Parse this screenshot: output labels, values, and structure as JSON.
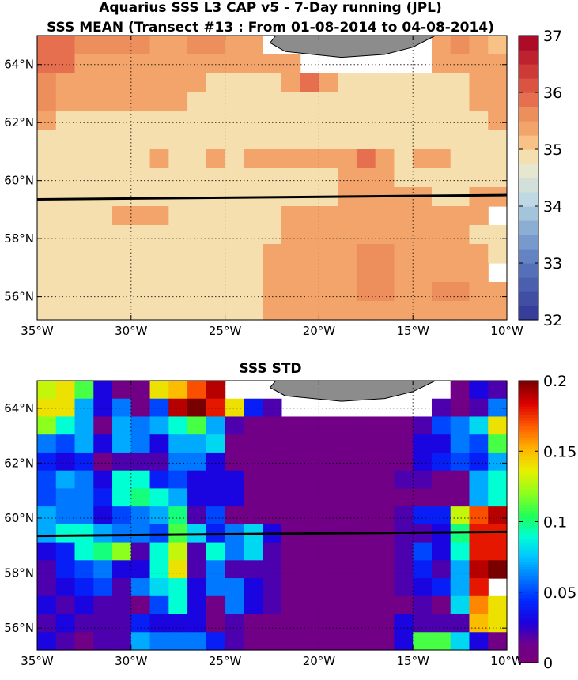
{
  "chart_data": [
    {
      "type": "heatmap",
      "title": "Aquarius SSS L3 CAP v5 - 7-Day running (JPL)",
      "subtitle": "SSS MEAN (Transect #13 : From 01-08-2014 to 04-08-2014)",
      "x_ticks": [
        "35°W",
        "30°W",
        "25°W",
        "20°W",
        "15°W",
        "10°W"
      ],
      "y_ticks": [
        "64°N",
        "62°N",
        "60°N",
        "58°N",
        "56°N"
      ],
      "colorbar": {
        "min": 32,
        "max": 37,
        "ticks": [
          "32",
          "33",
          "34",
          "35",
          "36",
          "37"
        ]
      },
      "xlim": [
        -35,
        -10
      ],
      "ylim": [
        55.2,
        65
      ],
      "transect": {
        "lon": [
          -35,
          -10
        ],
        "lat": [
          59.35,
          59.5
        ]
      },
      "cell_deg": 1,
      "rows_top_to_bottom": [
        [
          36.0,
          36.0,
          35.6,
          35.6,
          35.6,
          35.6,
          35.3,
          35.3,
          35.6,
          35.6,
          35.3,
          35.3,
          -1,
          -1,
          -1,
          -1,
          -1,
          -1,
          -1,
          -1,
          -1,
          35.3,
          35.6,
          35.3,
          35.1
        ],
        [
          36.0,
          36.0,
          35.3,
          35.3,
          35.3,
          35.3,
          35.3,
          35.3,
          35.3,
          35.3,
          35.3,
          35.3,
          35.3,
          35.3,
          -2,
          -2,
          -2,
          -2,
          -2,
          -2,
          -2,
          35.3,
          35.3,
          35.3,
          35.3
        ],
        [
          35.6,
          35.3,
          35.3,
          35.3,
          35.3,
          35.3,
          35.3,
          35.3,
          35.3,
          35.0,
          35.0,
          35.0,
          35.0,
          35.3,
          35.8,
          35.3,
          35.0,
          35.0,
          35.0,
          35.0,
          35.0,
          35.0,
          35.0,
          35.3,
          35.3
        ],
        [
          35.6,
          35.3,
          35.3,
          35.3,
          35.3,
          35.3,
          35.3,
          35.3,
          35.0,
          35.0,
          35.0,
          35.0,
          35.0,
          35.0,
          35.0,
          35.0,
          35.0,
          35.0,
          35.0,
          35.0,
          35.0,
          35.0,
          35.0,
          35.3,
          35.3
        ],
        [
          35.3,
          35.0,
          35.0,
          35.0,
          35.0,
          35.0,
          35.0,
          35.0,
          35.0,
          35.0,
          35.0,
          35.0,
          35.0,
          35.0,
          35.0,
          35.0,
          35.0,
          35.0,
          35.0,
          35.0,
          35.0,
          35.0,
          35.0,
          35.0,
          35.3
        ],
        [
          35.0,
          35.0,
          35.0,
          35.0,
          35.0,
          35.0,
          35.0,
          35.0,
          35.0,
          35.0,
          35.0,
          35.0,
          35.0,
          35.0,
          35.0,
          35.0,
          35.0,
          35.0,
          35.0,
          34.9,
          35.0,
          35.0,
          35.0,
          35.0,
          35.0
        ],
        [
          35.0,
          35.0,
          35.0,
          35.0,
          34.9,
          35.0,
          35.3,
          35.0,
          35.0,
          35.3,
          35.0,
          35.3,
          35.3,
          35.3,
          35.3,
          35.3,
          35.3,
          35.8,
          35.3,
          34.9,
          35.3,
          35.3,
          35.0,
          35.0,
          35.0
        ],
        [
          35.0,
          35.0,
          35.0,
          35.0,
          35.0,
          35.0,
          35.0,
          35.0,
          35.0,
          35.0,
          35.0,
          35.0,
          35.0,
          35.0,
          35.0,
          35.0,
          35.3,
          35.3,
          35.3,
          35.0,
          35.0,
          35.0,
          35.0,
          35.0,
          35.0
        ],
        [
          35.0,
          35.0,
          35.0,
          35.0,
          35.0,
          35.0,
          35.0,
          35.0,
          35.0,
          35.0,
          35.0,
          35.0,
          35.0,
          35.0,
          35.0,
          35.0,
          35.3,
          35.3,
          35.3,
          35.3,
          35.3,
          35.0,
          35.0,
          35.3,
          35.3
        ],
        [
          35.0,
          35.0,
          35.0,
          35.0,
          35.3,
          35.3,
          35.3,
          35.0,
          35.0,
          35.0,
          35.0,
          35.0,
          35.0,
          35.3,
          35.3,
          35.3,
          35.3,
          35.3,
          35.3,
          35.3,
          35.3,
          35.3,
          35.3,
          35.3,
          -1
        ],
        [
          35.0,
          35.0,
          35.0,
          35.0,
          34.9,
          34.9,
          35.0,
          35.0,
          35.0,
          35.0,
          35.0,
          35.0,
          35.0,
          35.3,
          35.3,
          35.3,
          35.3,
          35.3,
          35.3,
          35.3,
          35.3,
          35.3,
          35.3,
          35.0,
          35.0
        ],
        [
          35.0,
          35.0,
          35.0,
          35.0,
          35.0,
          35.0,
          35.0,
          35.0,
          35.0,
          35.0,
          35.0,
          35.0,
          35.3,
          35.3,
          35.3,
          35.3,
          35.3,
          35.6,
          35.6,
          35.3,
          35.3,
          35.3,
          35.3,
          35.3,
          35.0
        ],
        [
          35.0,
          35.0,
          35.0,
          35.0,
          35.0,
          35.0,
          35.0,
          35.0,
          35.0,
          35.0,
          35.0,
          35.0,
          35.3,
          35.3,
          35.3,
          35.3,
          35.3,
          35.6,
          35.6,
          35.3,
          35.3,
          35.3,
          35.3,
          35.3,
          -1
        ],
        [
          35.0,
          35.0,
          35.0,
          35.0,
          34.9,
          35.0,
          35.0,
          35.0,
          35.0,
          35.0,
          35.0,
          35.0,
          35.3,
          35.3,
          35.3,
          35.3,
          35.3,
          35.6,
          35.6,
          35.3,
          35.3,
          35.6,
          35.6,
          35.3,
          35.3
        ],
        [
          35.0,
          35.0,
          35.0,
          35.0,
          35.0,
          35.0,
          35.0,
          35.0,
          35.0,
          35.0,
          35.0,
          35.0,
          35.3,
          35.3,
          35.3,
          35.3,
          35.3,
          35.3,
          35.3,
          35.3,
          35.3,
          35.3,
          35.3,
          35.3,
          35.3
        ]
      ]
    },
    {
      "type": "heatmap",
      "title": "SSS STD",
      "x_ticks": [
        "35°W",
        "30°W",
        "25°W",
        "20°W",
        "15°W",
        "10°W"
      ],
      "y_ticks": [
        "64°N",
        "62°N",
        "60°N",
        "58°N",
        "56°N"
      ],
      "colorbar": {
        "min": 0,
        "max": 0.2,
        "ticks": [
          "0",
          "0.05",
          "0.1",
          "0.15",
          "0.2"
        ]
      },
      "xlim": [
        -35,
        -10
      ],
      "ylim": [
        55.2,
        65
      ],
      "transect": {
        "lon": [
          -35,
          -10
        ],
        "lat": [
          59.35,
          59.5
        ]
      },
      "cell_deg": 1,
      "rows_top_to_bottom": [
        [
          0.13,
          0.14,
          0.11,
          0.03,
          0.01,
          0.01,
          0.14,
          0.15,
          0.17,
          0.19,
          -1,
          -1,
          -1,
          -1,
          -1,
          -1,
          -1,
          -1,
          -1,
          -1,
          -1,
          -1,
          0.01,
          0.03,
          0.02
        ],
        [
          0.14,
          0.14,
          0.07,
          0.03,
          0.06,
          0.01,
          0.05,
          0.19,
          0.2,
          0.18,
          0.14,
          0.04,
          0.02,
          -2,
          -2,
          -2,
          -2,
          -2,
          -2,
          -2,
          -2,
          0.02,
          0.01,
          0.02,
          0.06
        ],
        [
          0.12,
          0.09,
          0.07,
          0.01,
          0.07,
          0.06,
          0.07,
          0.09,
          0.11,
          0.07,
          0.02,
          0.01,
          0.01,
          0.01,
          0.01,
          0.01,
          0.01,
          0.01,
          0.01,
          0.01,
          0.02,
          0.05,
          0.06,
          0.08,
          0.14
        ],
        [
          0.06,
          0.05,
          0.07,
          0.03,
          0.07,
          0.06,
          0.03,
          0.07,
          0.07,
          0.08,
          0.01,
          0.01,
          0.01,
          0.01,
          0.01,
          0.01,
          0.01,
          0.01,
          0.01,
          0.01,
          0.03,
          0.03,
          0.06,
          0.05,
          0.11
        ],
        [
          0.04,
          0.03,
          0.04,
          0.01,
          0.02,
          0.02,
          0.02,
          0.06,
          0.06,
          0.03,
          0.01,
          0.01,
          0.01,
          0.01,
          0.01,
          0.01,
          0.01,
          0.01,
          0.01,
          0.01,
          0.03,
          0.04,
          0.05,
          0.04,
          0.07
        ],
        [
          0.05,
          0.07,
          0.06,
          0.03,
          0.09,
          0.09,
          0.04,
          0.05,
          0.03,
          0.03,
          0.03,
          0.01,
          0.01,
          0.01,
          0.01,
          0.01,
          0.01,
          0.01,
          0.01,
          0.02,
          0.02,
          0.01,
          0.01,
          0.07,
          0.09
        ],
        [
          0.05,
          0.06,
          0.06,
          0.04,
          0.09,
          0.1,
          0.09,
          0.07,
          0.03,
          0.03,
          0.03,
          0.01,
          0.01,
          0.01,
          0.01,
          0.01,
          0.01,
          0.01,
          0.01,
          0.01,
          0.01,
          0.01,
          0.01,
          0.07,
          0.09
        ],
        [
          0.07,
          0.06,
          0.06,
          0.03,
          0.05,
          0.06,
          0.07,
          0.1,
          0.02,
          0.05,
          0.01,
          0.01,
          0.01,
          0.01,
          0.01,
          0.01,
          0.01,
          0.01,
          0.01,
          0.02,
          0.04,
          0.04,
          0.13,
          0.17,
          0.19
        ],
        [
          0.07,
          0.09,
          0.09,
          0.07,
          0.06,
          0.06,
          0.05,
          0.11,
          0.08,
          0.04,
          0.06,
          0.08,
          0.03,
          0.01,
          0.01,
          0.01,
          0.01,
          0.01,
          0.01,
          0.02,
          0.02,
          0.03,
          0.1,
          0.18,
          0.18
        ],
        [
          0.03,
          0.04,
          0.09,
          0.1,
          0.12,
          0.02,
          0.09,
          0.13,
          0.02,
          0.09,
          0.06,
          0.08,
          0.02,
          0.01,
          0.01,
          0.01,
          0.01,
          0.01,
          0.01,
          0.02,
          0.05,
          0.03,
          0.09,
          0.18,
          0.18
        ],
        [
          0.02,
          0.04,
          0.05,
          0.06,
          0.03,
          0.03,
          0.09,
          0.14,
          0.02,
          0.06,
          0.02,
          0.02,
          0.02,
          0.01,
          0.01,
          0.01,
          0.01,
          0.01,
          0.01,
          0.02,
          0.04,
          0.02,
          0.07,
          0.19,
          0.2
        ],
        [
          0.02,
          0.03,
          0.04,
          0.05,
          0.02,
          0.06,
          0.08,
          0.09,
          0.03,
          0.06,
          0.06,
          0.03,
          0.02,
          0.01,
          0.01,
          0.01,
          0.01,
          0.01,
          0.01,
          0.02,
          0.03,
          0.04,
          0.07,
          0.18,
          -1
        ],
        [
          0.03,
          0.02,
          0.03,
          0.02,
          0.02,
          0.01,
          0.05,
          0.09,
          0.03,
          0.01,
          0.06,
          0.03,
          0.02,
          0.01,
          0.01,
          0.01,
          0.01,
          0.01,
          0.01,
          0.01,
          0.02,
          0.01,
          0.08,
          0.16,
          0.14
        ],
        [
          0.02,
          0.03,
          0.02,
          0.02,
          0.02,
          0.04,
          0.03,
          0.03,
          0.03,
          0.01,
          0.02,
          0.01,
          0.01,
          0.01,
          0.01,
          0.01,
          0.01,
          0.01,
          0.01,
          0.03,
          0.02,
          0.02,
          0.02,
          0.15,
          0.14
        ],
        [
          0.03,
          0.02,
          0.01,
          0.02,
          0.02,
          0.07,
          0.06,
          0.06,
          0.06,
          0.04,
          0.02,
          0.01,
          0.01,
          0.01,
          0.01,
          0.01,
          0.01,
          0.01,
          0.01,
          0.03,
          0.11,
          0.11,
          0.08,
          0.03,
          0.01
        ]
      ]
    }
  ]
}
